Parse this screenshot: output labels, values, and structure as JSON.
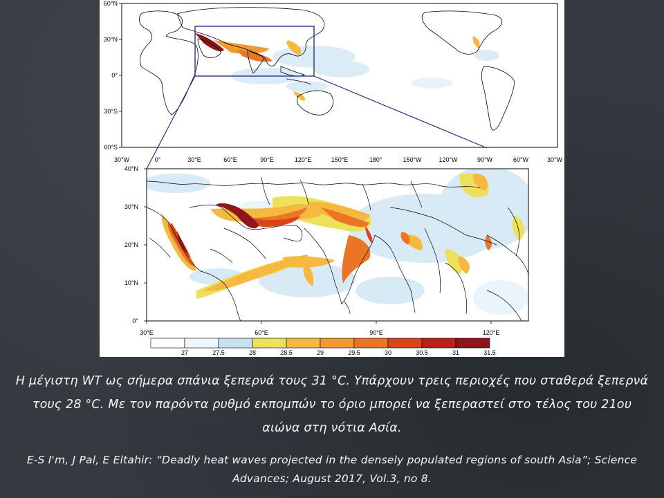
{
  "slide": {
    "caption": "Η μέγιστη WT ως σήμερα σπάνια ξεπερνά τους 31 °C. Υπάρχουν τρεις περιοχές που σταθερά ξεπερνά τους  28 °C.  Με τον παρόντα ρυθμό εκπομπών το όριο μπορεί να ξεπεραστεί στο τέλος του 21ου αιώνα στη νότια Ασία.",
    "reference": "E-S I'm, J Pal, E Eltahir: “Deadly heat waves projected in the densely populated regions of south Asia”; Science Advances; August 2017, Vol.3, no 8."
  },
  "global_map": {
    "lat_ticks": [
      "60°N",
      "30°N",
      "0°",
      "30°S",
      "60°S"
    ],
    "lon_ticks": [
      "30°W",
      "0°",
      "30°E",
      "60°E",
      "90°E",
      "120°E",
      "150°E",
      "180°",
      "150°W",
      "120°W",
      "90°W",
      "60°W",
      "30°W"
    ]
  },
  "zoom_map": {
    "lat_ticks": [
      "40°N",
      "30°N",
      "20°N",
      "10°N",
      "0°"
    ],
    "lon_ticks": [
      "30°E",
      "60°E",
      "90°E",
      "120°E"
    ]
  },
  "colorbar": {
    "labels": [
      "27",
      "27.5",
      "28",
      "28.5",
      "29",
      "29.5",
      "30",
      "30.5",
      "31",
      "31.5"
    ],
    "colors": [
      "#ffffff",
      "#eef6fb",
      "#c7e1f1",
      "#ede05a",
      "#f5b93f",
      "#f19a35",
      "#ea7526",
      "#d9451b",
      "#b8221b",
      "#8e1519"
    ]
  }
}
